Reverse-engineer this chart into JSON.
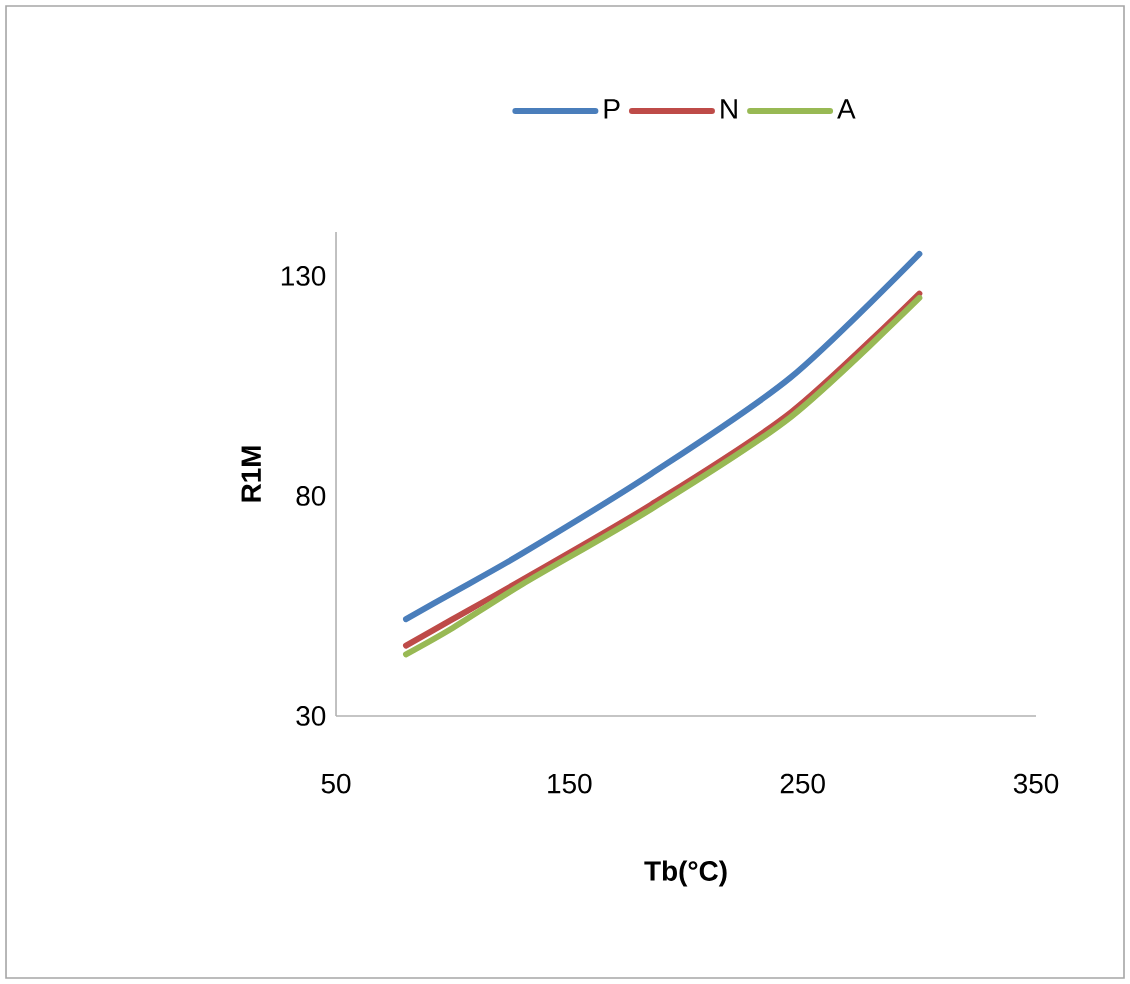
{
  "chart_data": {
    "type": "line",
    "xlabel": "Tb(°C)",
    "ylabel": "R1M",
    "xlim": [
      50,
      350
    ],
    "ylim": [
      30,
      140
    ],
    "xticks": [
      50,
      150,
      250,
      350
    ],
    "yticks": [
      30,
      80,
      130
    ],
    "legend": "top",
    "grid": false,
    "line_style": "solid",
    "series": [
      {
        "name": "P",
        "color": "#4a7ebb",
        "x": [
          80,
          100,
          130,
          185,
          245,
          300
        ],
        "values": [
          52,
          58,
          67,
          85,
          107,
          135
        ]
      },
      {
        "name": "N",
        "color": "#be4b48",
        "x": [
          80,
          100,
          130,
          185,
          245,
          300
        ],
        "values": [
          46,
          52,
          61,
          78,
          99,
          126
        ]
      },
      {
        "name": "A",
        "color": "#98b954",
        "x": [
          80,
          100,
          130,
          185,
          245,
          300
        ],
        "values": [
          44,
          50,
          60,
          77,
          98,
          125
        ]
      }
    ]
  }
}
